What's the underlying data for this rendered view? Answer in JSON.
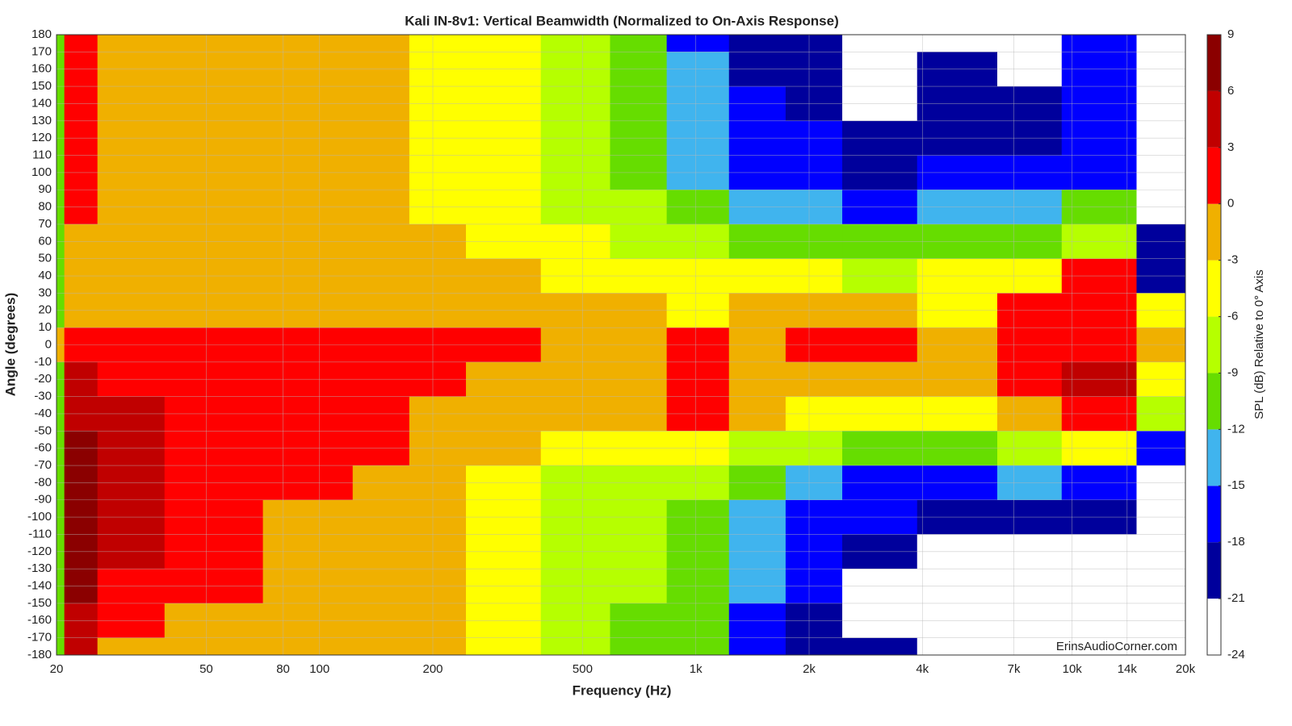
{
  "chart_data": {
    "type": "contour",
    "title": "Kali IN-8v1: Vertical Beamwidth (Normalized to On-Axis Response)",
    "x_label": "Frequency (Hz)",
    "y_label": "Angle (degrees)",
    "watermark": "ErinsAudioCorner.com",
    "x_scale": "log",
    "grid": true,
    "xlim": [
      20,
      20000
    ],
    "xticks": [
      20,
      50,
      80,
      100,
      200,
      500,
      {
        "value": 1000,
        "label": "1k"
      },
      {
        "value": 2000,
        "label": "2k"
      },
      {
        "value": 4000,
        "label": "4k"
      },
      {
        "value": 7000,
        "label": "7k"
      },
      {
        "value": 10000,
        "label": "10k"
      },
      {
        "value": 14000,
        "label": "14k"
      },
      {
        "value": 20000,
        "label": "20k"
      }
    ],
    "ylim": [
      -180,
      180
    ],
    "yticks": [
      180,
      170,
      160,
      150,
      140,
      130,
      120,
      110,
      100,
      90,
      80,
      70,
      60,
      50,
      40,
      30,
      20,
      10,
      0,
      -10,
      -20,
      -30,
      -40,
      -50,
      -60,
      -70,
      -80,
      -90,
      -100,
      -110,
      -120,
      -130,
      -140,
      -150,
      -160,
      -170,
      -180
    ],
    "colorbar": {
      "label": "SPL (dB) Relative to 0° Axis",
      "lim": [
        -24,
        9
      ]
    },
    "levels": [
      -24,
      -21,
      -18,
      -15,
      -12,
      -9,
      -6,
      -3,
      0,
      3,
      6,
      9
    ],
    "colors": [
      "#ffffff",
      "#00009c",
      "#0000ff",
      "#40b4ee",
      "#66dd00",
      "#b6ff00",
      "#ffff00",
      "#f0b000",
      "#ff0000",
      "#c00000",
      "#8b0000"
    ],
    "x": [
      20,
      22,
      30,
      50,
      100,
      150,
      200,
      300,
      500,
      700,
      1000,
      1500,
      2000,
      3000,
      5000,
      8000,
      11000,
      20000
    ],
    "y": [
      180,
      160,
      140,
      120,
      100,
      80,
      60,
      40,
      20,
      0,
      -20,
      -40,
      -60,
      -80,
      -100,
      -120,
      -140,
      -160,
      -180
    ],
    "z": [
      [
        -12,
        1,
        -2,
        -2,
        -2,
        -2,
        -4,
        -5,
        -9,
        -11,
        -16,
        -20,
        -20,
        -22,
        -22,
        -22,
        -17,
        -22
      ],
      [
        -12,
        1,
        -2,
        -2,
        -2,
        -2,
        -4,
        -5,
        -9,
        -11,
        -15,
        -19,
        -20,
        -22,
        -19,
        -22,
        -18,
        -22
      ],
      [
        -12,
        1,
        -2,
        -2,
        -2,
        -2,
        -4,
        -5,
        -8,
        -11,
        -14,
        -17,
        -19,
        -22,
        -19,
        -20,
        -18,
        -22
      ],
      [
        -12,
        1,
        -2,
        -2,
        -2,
        -2,
        -4,
        -5,
        -8,
        -10,
        -14,
        -16,
        -18,
        -20,
        -20,
        -19,
        -18,
        -22
      ],
      [
        -12,
        1,
        -2,
        -2,
        -2,
        -2,
        -4,
        -5,
        -7,
        -10,
        -13,
        -16,
        -17,
        -19,
        -18,
        -17,
        -16,
        -22
      ],
      [
        -12,
        1,
        -2,
        -2,
        -2,
        -2,
        -4,
        -5,
        -7,
        -9,
        -12,
        -13,
        -15,
        -17,
        -14,
        -15,
        -12,
        -22
      ],
      [
        -12,
        -1,
        -2,
        -2,
        -2,
        -2,
        -3,
        -4,
        -6,
        -7,
        -9,
        -10,
        -11,
        -12,
        -10,
        -11,
        -8,
        -21
      ],
      [
        -12,
        -1,
        -2,
        -2,
        -2,
        -2,
        -2,
        -2,
        -4,
        -5,
        -6,
        -5,
        -6,
        -7,
        -6,
        -4,
        1,
        -19
      ],
      [
        -12,
        -1,
        -2,
        -2,
        -2,
        -2,
        -2,
        -2,
        -2,
        -3,
        -4,
        -2,
        -3,
        -3,
        -4,
        2,
        2,
        -6
      ],
      [
        -2,
        2,
        1,
        1,
        1,
        1,
        1,
        1,
        -1,
        -1,
        1,
        -1,
        1,
        1,
        -1,
        2,
        2,
        -2
      ],
      [
        -12,
        4,
        2,
        1,
        1,
        1,
        1,
        -1,
        -2,
        -2,
        1,
        -2,
        -2,
        -2,
        -3,
        2,
        3,
        -4
      ],
      [
        -12,
        5,
        3,
        1,
        1,
        1,
        -1,
        -2,
        -3,
        -1,
        1,
        -3,
        -4,
        -5,
        -6,
        -1,
        1,
        -9
      ],
      [
        -12,
        6,
        3,
        1,
        1,
        1,
        -2,
        -3,
        -5,
        -5,
        -6,
        -7,
        -8,
        -10,
        -12,
        -9,
        -6,
        -17
      ],
      [
        -12,
        6,
        3,
        1,
        1,
        -2,
        -3,
        -4,
        -7,
        -8,
        -9,
        -11,
        -13,
        -16,
        -18,
        -13,
        -16,
        -22
      ],
      [
        -12,
        6,
        3,
        1,
        -2,
        -2,
        -3,
        -5,
        -7,
        -9,
        -10,
        -13,
        -16,
        -18,
        -20,
        -19,
        -20,
        -22
      ],
      [
        -12,
        6,
        3,
        1,
        -2,
        -2,
        -3,
        -5,
        -7,
        -9,
        -10,
        -13,
        -16,
        -20,
        -22,
        -22,
        -22,
        -22
      ],
      [
        -12,
        6,
        2,
        1,
        -2,
        -2,
        -3,
        -5,
        -7,
        -9,
        -11,
        -14,
        -17,
        -22,
        -22,
        -22,
        -22,
        -22
      ],
      [
        -12,
        5,
        1,
        -2,
        -2,
        -2,
        -3,
        -5,
        -8,
        -10,
        -12,
        -16,
        -19,
        -22,
        -22,
        -22,
        -22,
        -22
      ],
      [
        -12,
        5,
        -2,
        -2,
        -2,
        -2,
        -3,
        -6,
        -8,
        -10,
        -12,
        -16,
        -19,
        -20,
        -22,
        -22,
        -22,
        -22
      ]
    ]
  }
}
